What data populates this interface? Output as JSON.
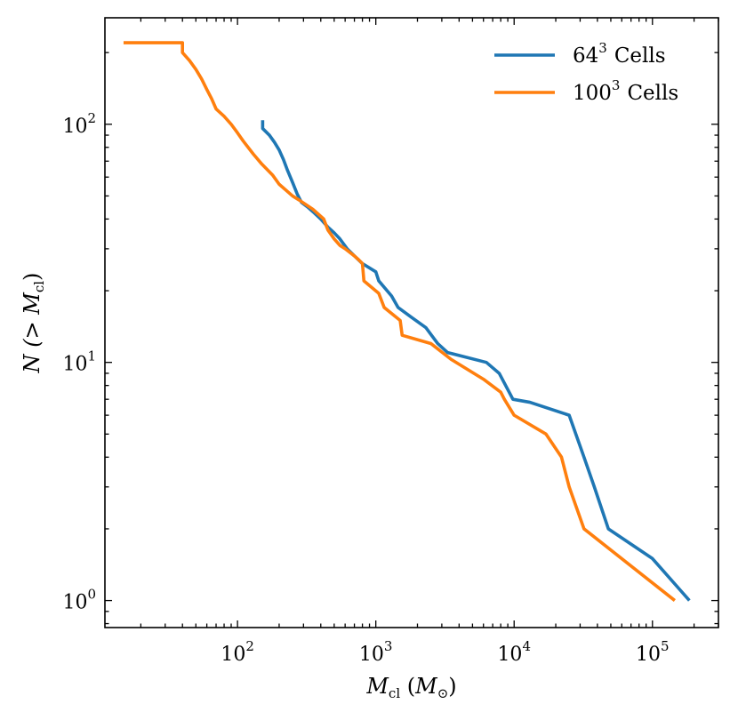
{
  "chart_data": {
    "type": "line",
    "x_scale": "log",
    "y_scale": "log",
    "xlim": [
      11,
      300000
    ],
    "ylim": [
      0.77,
      280
    ],
    "xlabel": "M_cl (M_⊙)",
    "xlabel_parts": {
      "main": "M",
      "sub": "cl",
      "paren_main": "M",
      "paren_sub": "⊙"
    },
    "ylabel": "N (> M_cl)",
    "ylabel_parts": {
      "main": "N (> M",
      "sub": "cl",
      "close": ")"
    },
    "x_ticks": [
      {
        "value": 100,
        "base": "10",
        "exp": "2"
      },
      {
        "value": 1000,
        "base": "10",
        "exp": "3"
      },
      {
        "value": 10000,
        "base": "10",
        "exp": "4"
      },
      {
        "value": 100000,
        "base": "10",
        "exp": "5"
      }
    ],
    "y_ticks": [
      {
        "value": 1,
        "base": "10",
        "exp": "0"
      },
      {
        "value": 10,
        "base": "10",
        "exp": "1"
      },
      {
        "value": 100,
        "base": "10",
        "exp": "2"
      }
    ],
    "legend_position": "top-right",
    "series": [
      {
        "name": "64^3 Cells",
        "label_base": "64",
        "label_exp": "3",
        "label_rest": "Cells",
        "color": "#1f77b4",
        "x": [
          152,
          152,
          170,
          185,
          200,
          215,
          230,
          250,
          270,
          290,
          320,
          350,
          400,
          450,
          500,
          550,
          620,
          700,
          800,
          1000,
          1050,
          1300,
          1450,
          1800,
          2300,
          2800,
          3300,
          6300,
          7800,
          9800,
          13000,
          25000,
          32000,
          38000,
          48000,
          100000,
          185000
        ],
        "y": [
          104,
          96,
          90,
          84,
          78,
          71,
          64,
          57,
          51,
          47,
          45,
          43,
          40,
          37,
          35,
          33,
          30,
          28,
          26,
          24,
          22,
          19,
          17,
          15.5,
          14,
          12,
          11,
          10,
          9,
          7,
          6.8,
          6,
          4,
          3,
          2,
          1.5,
          1
        ]
      },
      {
        "name": "100^3 Cells",
        "label_base": "100",
        "label_exp": "3",
        "label_rest": "Cells",
        "color": "#ff7f0e",
        "x": [
          15,
          40,
          40,
          45,
          50,
          55,
          60,
          65,
          70,
          80,
          90,
          100,
          110,
          130,
          150,
          180,
          200,
          250,
          280,
          350,
          420,
          450,
          500,
          550,
          600,
          700,
          750,
          800,
          820,
          1050,
          1150,
          1500,
          1550,
          2500,
          3500,
          6000,
          8000,
          8500,
          10000,
          17000,
          22000,
          25000,
          32000,
          145000
        ],
        "y": [
          220,
          220,
          200,
          185,
          170,
          155,
          140,
          128,
          116,
          108,
          100,
          92,
          85,
          75,
          68,
          61,
          56,
          50,
          48,
          44,
          40,
          36,
          33,
          31,
          30,
          28,
          27,
          26,
          22,
          19.5,
          17,
          15,
          13,
          12,
          10.3,
          8.5,
          7.5,
          7,
          6,
          5,
          4,
          3,
          2,
          1
        ]
      }
    ]
  }
}
